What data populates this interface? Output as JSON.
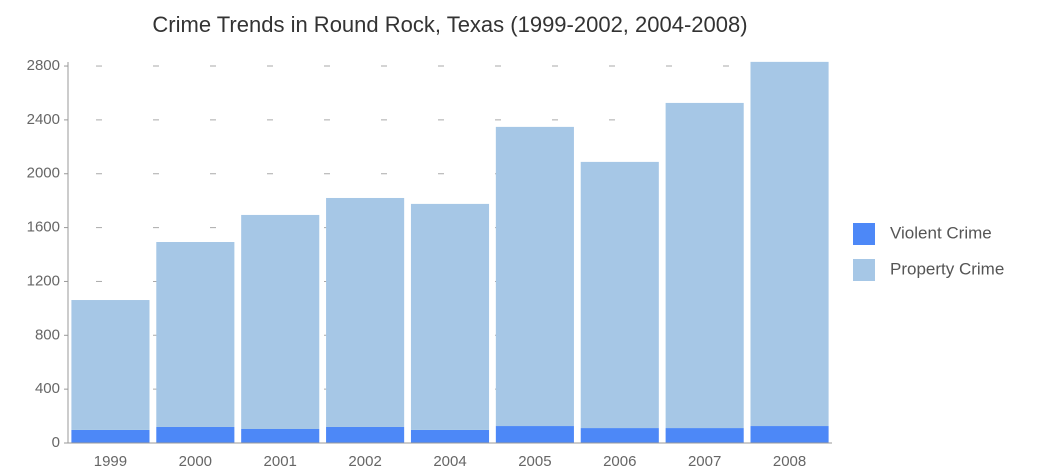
{
  "chart_data": {
    "type": "stacked_bar",
    "title": "Crime Trends in Round Rock, Texas (1999-2002, 2004-2008)",
    "categories": [
      "1999",
      "2000",
      "2001",
      "2002",
      "2004",
      "2005",
      "2006",
      "2007",
      "2008"
    ],
    "series": [
      {
        "name": "Violent Crime",
        "color": "#4d88f7",
        "values": [
          97,
          119,
          104,
          119,
          97,
          126,
          111,
          111,
          126
        ]
      },
      {
        "name": "Property Crime",
        "color": "#a6c7e6",
        "values": [
          965,
          1374,
          1590,
          1701,
          1679,
          2222,
          1977,
          2415,
          2705
        ]
      }
    ],
    "ylim": [
      0,
      2830
    ],
    "yticks": [
      0,
      400,
      800,
      1200,
      1600,
      2000,
      2400,
      2800
    ],
    "grid": true,
    "legend": "right"
  }
}
